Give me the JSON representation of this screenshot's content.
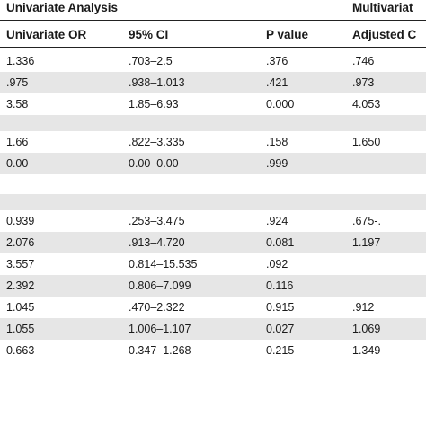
{
  "groups": {
    "univariate": "Univariate Analysis",
    "multivariate": "Multivariat"
  },
  "columns": {
    "or": "Univariate OR",
    "ci": "95% CI",
    "p": "P value",
    "adj": "Adjusted C"
  },
  "rows": [
    {
      "or": "1.336",
      "ci": ".703–2.5",
      "p": ".376",
      "adj": ".746"
    },
    {
      "or": ".975",
      "ci": ".938–1.013",
      "p": ".421",
      "adj": ".973"
    },
    {
      "or": "3.58",
      "ci": "1.85–6.93",
      "p": "0.000",
      "adj": "4.053"
    },
    {
      "or": "1.66",
      "ci": ".822–3.335",
      "p": ".158",
      "adj": "1.650"
    },
    {
      "or": "0.00",
      "ci": "0.00–0.00",
      "p": ".999",
      "adj": ""
    },
    {
      "or": "0.939",
      "ci": ".253–3.475",
      "p": ".924",
      "adj": ".675-."
    },
    {
      "or": "2.076",
      "ci": ".913–4.720",
      "p": "0.081",
      "adj": "1.197"
    },
    {
      "or": "3.557",
      "ci": "0.814–15.535",
      "p": ".092",
      "adj": ""
    },
    {
      "or": "2.392",
      "ci": "0.806–7.099",
      "p": "0.116",
      "adj": ""
    },
    {
      "or": "1.045",
      "ci": ".470–2.322",
      "p": "0.915",
      "adj": ".912"
    },
    {
      "or": "1.055",
      "ci": "1.006–1.107",
      "p": "0.027",
      "adj": "1.069"
    },
    {
      "or": "0.663",
      "ci": "0.347–1.268",
      "p": "0.215",
      "adj": "1.349"
    }
  ]
}
